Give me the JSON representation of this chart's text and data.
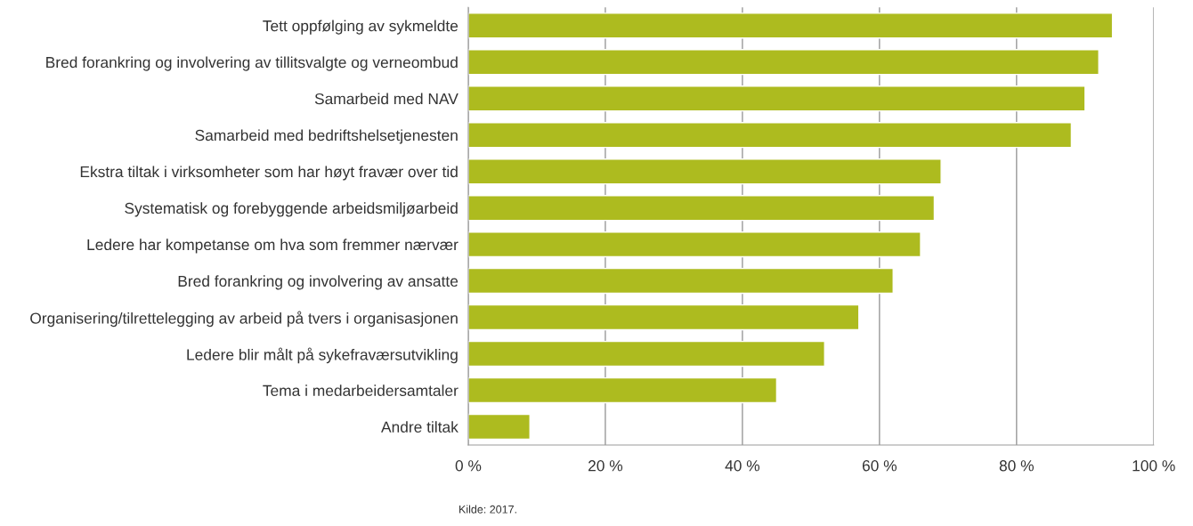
{
  "chart_data": {
    "type": "bar",
    "orientation": "horizontal",
    "categories": [
      "Tett oppfølging av sykmeldte",
      "Bred forankring og involvering av tillitsvalgte og verneombud",
      "Samarbeid med NAV",
      "Samarbeid med bedriftshelsetjenesten",
      "Ekstra tiltak i virksomheter som har høyt fravær over tid",
      "Systematisk og forebyggende arbeidsmiljøarbeid",
      "Ledere har kompetanse om hva som fremmer nærvær",
      "Bred forankring og involvering av ansatte",
      "Organisering/tilrettelegging av arbeid på tvers i organisasjonen",
      "Ledere blir målt på sykefraværsutvikling",
      "Tema i medarbeidersamtaler",
      "Andre tiltak"
    ],
    "values": [
      94,
      92,
      90,
      88,
      69,
      68,
      66,
      62,
      57,
      52,
      45,
      9
    ],
    "color": "#adbb1f",
    "xlim": [
      0,
      100
    ],
    "xticks": [
      {
        "value": 0,
        "label": "0 %"
      },
      {
        "value": 20,
        "label": "20 %"
      },
      {
        "value": 40,
        "label": "40 %"
      },
      {
        "value": 60,
        "label": "60 %"
      },
      {
        "value": 80,
        "label": "80 %"
      },
      {
        "value": 100,
        "label": "100 %"
      }
    ],
    "grid": "x",
    "annotations": [
      "Kilde: 2017."
    ]
  }
}
